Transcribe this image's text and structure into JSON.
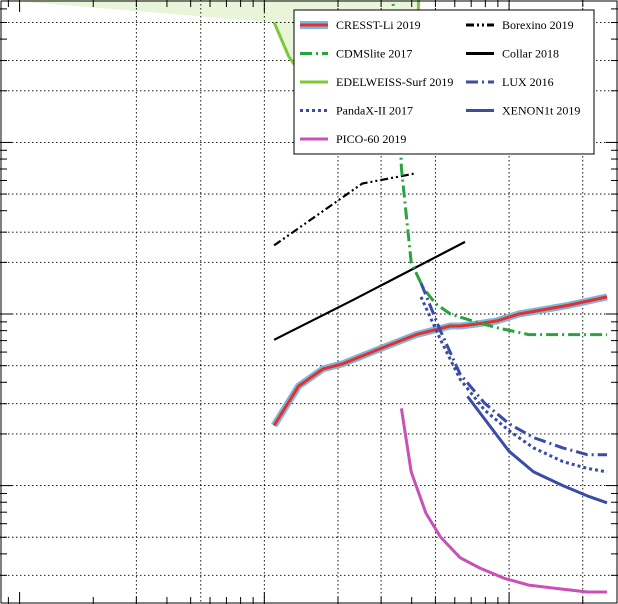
{
  "chart_data": {
    "type": "line",
    "title": "",
    "xlabel": "",
    "ylabel": "",
    "x_scale": "log",
    "y_scale": "log",
    "x_decade_lines": [
      0.3,
      1,
      3,
      10,
      30,
      100
    ],
    "x_minor_lines": [
      0.55,
      2,
      5,
      20,
      50,
      200,
      500
    ],
    "legend_placement": "top-right",
    "grid": true,
    "series": [
      {
        "name": "CRESST-Li 2019",
        "color": "#e1312e",
        "band_color": "#7eb6dc",
        "style": "solid-band",
        "points": [
          [
            0.04,
            -0.65
          ],
          [
            0.14,
            -0.42
          ],
          [
            0.24,
            -0.32
          ],
          [
            0.32,
            -0.29
          ],
          [
            0.46,
            -0.21
          ],
          [
            0.62,
            -0.12
          ],
          [
            0.76,
            -0.07
          ],
          [
            0.8,
            -0.07
          ],
          [
            0.86,
            -0.06
          ],
          [
            0.95,
            -0.04
          ],
          [
            1.04,
            0.0
          ],
          [
            1.24,
            0.05
          ],
          [
            1.4,
            0.1
          ]
        ]
      },
      {
        "name": "CDMSlite 2017",
        "color": "#27a340",
        "style": "dashdot",
        "points": [
          [
            0.52,
            1.9
          ],
          [
            0.54,
            1.6
          ],
          [
            0.56,
            0.85
          ],
          [
            0.6,
            0.3
          ],
          [
            0.65,
            0.15
          ],
          [
            0.7,
            0.06
          ],
          [
            0.76,
            0.0
          ],
          [
            0.85,
            -0.04
          ],
          [
            0.95,
            -0.08
          ],
          [
            1.08,
            -0.12
          ],
          [
            1.4,
            -0.12
          ]
        ]
      },
      {
        "name": "EDELWEISS-Surf 2019",
        "color": "#7cc83b",
        "style": "solid",
        "points": [
          [
            0.04,
            1.7
          ],
          [
            0.1,
            1.5
          ],
          [
            0.16,
            1.38
          ],
          [
            0.24,
            1.28
          ],
          [
            0.33,
            1.18
          ],
          [
            0.41,
            1.15
          ],
          [
            0.5,
            1.08
          ],
          [
            0.58,
            1.07
          ],
          [
            0.62,
            1.15
          ],
          [
            0.64,
            2.5
          ]
        ]
      },
      {
        "name": "PandaX-II 2017",
        "color": "#3a4ba8",
        "style": "dotted",
        "points": [
          [
            0.64,
            0.1
          ],
          [
            0.72,
            -0.15
          ],
          [
            0.8,
            -0.38
          ],
          [
            0.9,
            -0.56
          ],
          [
            1.0,
            -0.68
          ],
          [
            1.1,
            -0.78
          ],
          [
            1.22,
            -0.86
          ],
          [
            1.32,
            -0.9
          ],
          [
            1.4,
            -0.92
          ]
        ]
      },
      {
        "name": "PICO-60 2019",
        "color": "#c950b6",
        "style": "solid",
        "points": [
          [
            0.56,
            -0.55
          ],
          [
            0.6,
            -0.92
          ],
          [
            0.66,
            -1.16
          ],
          [
            0.72,
            -1.3
          ],
          [
            0.8,
            -1.42
          ],
          [
            0.88,
            -1.48
          ],
          [
            0.98,
            -1.54
          ],
          [
            1.08,
            -1.58
          ],
          [
            1.2,
            -1.6
          ],
          [
            1.32,
            -1.62
          ],
          [
            1.4,
            -1.62
          ]
        ]
      },
      {
        "name": "Borexino 2019",
        "color": "#000000",
        "style": "dashdotdot",
        "points": [
          [
            0.04,
            0.4
          ],
          [
            0.4,
            0.76
          ],
          [
            0.62,
            0.82
          ]
        ]
      },
      {
        "name": "Collar 2018",
        "color": "#000000",
        "style": "solid",
        "points": [
          [
            0.04,
            -0.15
          ],
          [
            0.36,
            0.08
          ],
          [
            0.82,
            0.42
          ]
        ]
      },
      {
        "name": "LUX 2016",
        "color": "#3a4ba8",
        "style": "dashdot",
        "points": [
          [
            0.64,
            0.18
          ],
          [
            0.72,
            -0.1
          ],
          [
            0.8,
            -0.35
          ],
          [
            0.9,
            -0.52
          ],
          [
            1.0,
            -0.64
          ],
          [
            1.1,
            -0.72
          ],
          [
            1.22,
            -0.78
          ],
          [
            1.32,
            -0.82
          ],
          [
            1.4,
            -0.82
          ]
        ]
      },
      {
        "name": "XENON1t 2019",
        "color": "#3a4ba8",
        "style": "solid",
        "points": [
          [
            0.83,
            -0.48
          ],
          [
            0.92,
            -0.65
          ],
          [
            1.0,
            -0.8
          ],
          [
            1.1,
            -0.92
          ],
          [
            1.22,
            -1.0
          ],
          [
            1.32,
            -1.06
          ],
          [
            1.4,
            -1.1
          ]
        ]
      }
    ]
  },
  "legend": {
    "col1": [
      "CRESST-Li 2019",
      "CDMSlite 2017",
      "EDELWEISS-Surf 2019",
      "PandaX-II 2017",
      "PICO-60 2019"
    ],
    "col2": [
      "Borexino 2019",
      "Collar 2018",
      "LUX 2016",
      "XENON1t 2019"
    ]
  },
  "colors": {
    "excluded_region": "#e9f5d9",
    "grid": "#000000",
    "axis": "#000000"
  }
}
